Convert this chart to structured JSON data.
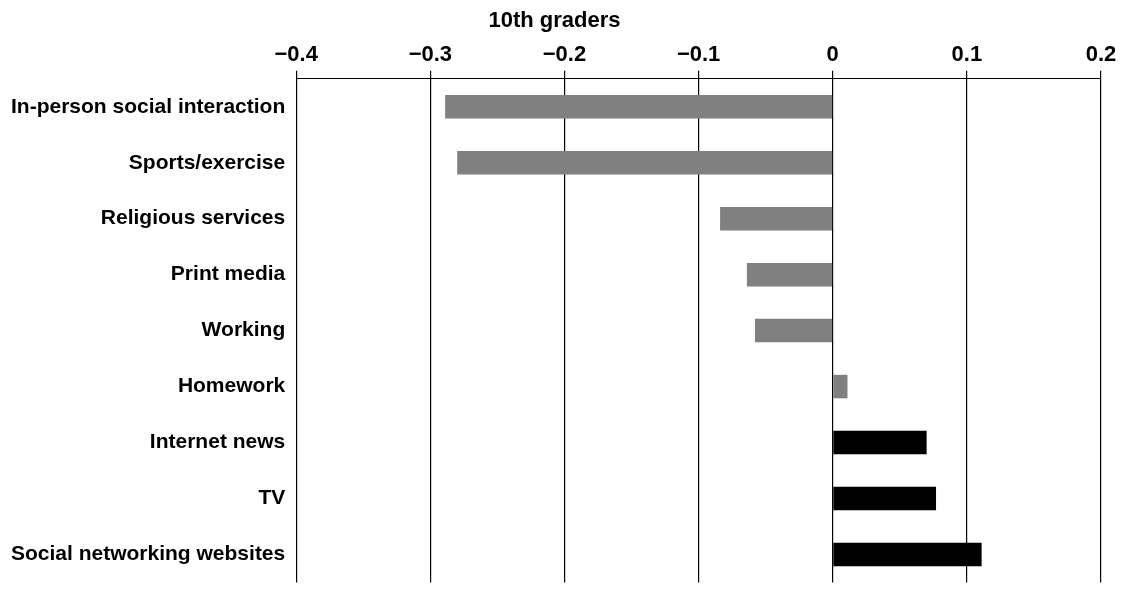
{
  "chart_data": {
    "type": "bar",
    "orientation": "horizontal",
    "title": "10th graders",
    "categories": [
      "In-person social interaction",
      "Sports/exercise",
      "Religious services",
      "Print media",
      "Working",
      "Homework",
      "Internet news",
      "TV",
      "Social networking websites"
    ],
    "values": [
      -0.289,
      -0.28,
      -0.084,
      -0.064,
      -0.058,
      0.011,
      0.07,
      0.077,
      0.111
    ],
    "colors": [
      "#808080",
      "#808080",
      "#808080",
      "#808080",
      "#808080",
      "#808080",
      "#000000",
      "#000000",
      "#000000"
    ],
    "xlim": [
      -0.4,
      0.2
    ],
    "xticks": [
      {
        "value": -0.4,
        "label": "−0.4"
      },
      {
        "value": -0.3,
        "label": "−0.3"
      },
      {
        "value": -0.2,
        "label": "−0.2"
      },
      {
        "value": -0.1,
        "label": "−0.1"
      },
      0,
      0.1,
      0.2
    ],
    "grid": "x",
    "legend": false
  }
}
